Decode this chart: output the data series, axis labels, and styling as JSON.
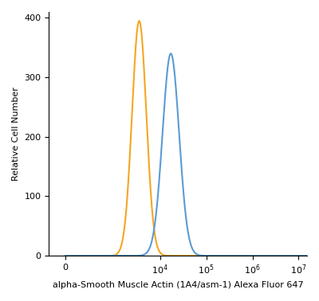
{
  "orange_peak_x": 3500,
  "orange_peak_y": 395,
  "orange_sigma": 0.155,
  "blue_peak_x": 17000,
  "blue_peak_y": 340,
  "blue_sigma": 0.18,
  "orange_color": "#F5A623",
  "blue_color": "#5B9BD5",
  "ylabel": "Relative Cell Number",
  "xlabel": "alpha-Smooth Muscle Actin (1A4/asm-1) Alexa Fluor 647",
  "ylim": [
    0,
    410
  ],
  "yticks": [
    0,
    100,
    200,
    300,
    400
  ],
  "linthresh": 100,
  "linscale": 0.05,
  "xlim_left": -200,
  "xlim_right": 15000000.0,
  "xticks": [
    0,
    10000.0,
    100000.0,
    1000000.0,
    10000000.0
  ],
  "background_color": "#ffffff",
  "linewidth": 1.5
}
